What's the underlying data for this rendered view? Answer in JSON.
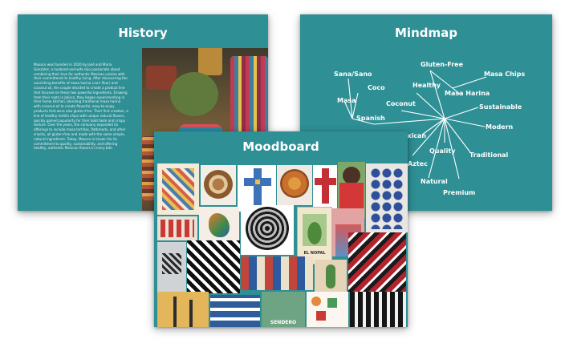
{
  "history": {
    "title": "History",
    "body": "Masaco was founded in 2020 by José and Maria González, a husband-and-wife duo passionate about combining their love for authentic Mexican cuisine with their commitment to healthy living. After discovering the nourishing benefits of masa harina (corn flour) and coconut oil, the couple decided to create a product line that focused on these two powerful ingredients. Drawing from their roots in Jalisco, they began experimenting in their home kitchen, blending traditional masa harina with coconut oil to create flavorful, easy-to-enjoy products that were also gluten-free. Their first creation, a line of healthy tortilla chips with unique natural flavors, quickly gained popularity for their bold taste and crispy texture. Over the years, the company expanded its offerings to include masa tortillas, flatbreads, and other snacks, all gluten-free and made with the same simple, natural ingredients. Today, Masaco is known for its commitment to quality, sustainability, and offering healthy, authentic Mexican flavors in every bite."
  },
  "mindmap": {
    "title": "Mindmap",
    "words": [
      "Sana/Sano",
      "Gluten-Free",
      "Masa Chips",
      "Coco",
      "Healthy",
      "Masa Harina",
      "Masa",
      "Coconut",
      "Sustainable",
      "Spanish",
      "Modern",
      "Mexican",
      "Quality",
      "Traditional",
      "Aztec",
      "Natural",
      "Premium"
    ]
  },
  "moodboard": {
    "title": "Moodboard",
    "poster_text": "EL NOPAL",
    "tile_text": "SENDERO"
  },
  "colors": {
    "card_teal": "#2e8f95",
    "text_white": "#ffffff"
  }
}
